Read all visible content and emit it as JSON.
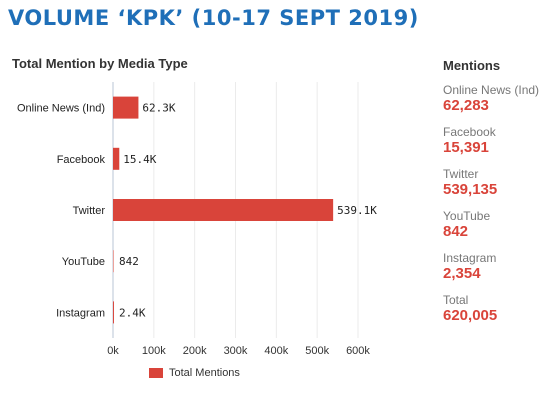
{
  "page": {
    "title": "VOLUME ‘KPK’ (10-17 SEPT 2019)",
    "accent_color": "#1f6fb8"
  },
  "chart_data": {
    "type": "bar",
    "orientation": "horizontal",
    "title": "Total Mention by Media Type",
    "categories": [
      "Online News (Ind)",
      "Facebook",
      "Twitter",
      "YouTube",
      "Instagram"
    ],
    "series": [
      {
        "name": "Total Mentions",
        "color": "#d9443a",
        "values": [
          62283,
          15391,
          539135,
          842,
          2354
        ],
        "data_labels": [
          "62.3K",
          "15.4K",
          "539.1K",
          "842",
          "2.4K"
        ]
      }
    ],
    "x_ticks": [
      "0k",
      "100k",
      "200k",
      "300k",
      "400k",
      "500k",
      "600k"
    ],
    "xlim": [
      0,
      600000
    ],
    "grid": true,
    "legend_position": "bottom"
  },
  "stats": {
    "header": "Mentions",
    "items": [
      {
        "label": "Online News (Ind)",
        "value": "62,283"
      },
      {
        "label": "Facebook",
        "value": "15,391"
      },
      {
        "label": "Twitter",
        "value": "539,135"
      },
      {
        "label": "YouTube",
        "value": "842"
      },
      {
        "label": "Instagram",
        "value": "2,354"
      },
      {
        "label": "Total",
        "value": "620,005"
      }
    ],
    "value_color": "#d9443a"
  }
}
